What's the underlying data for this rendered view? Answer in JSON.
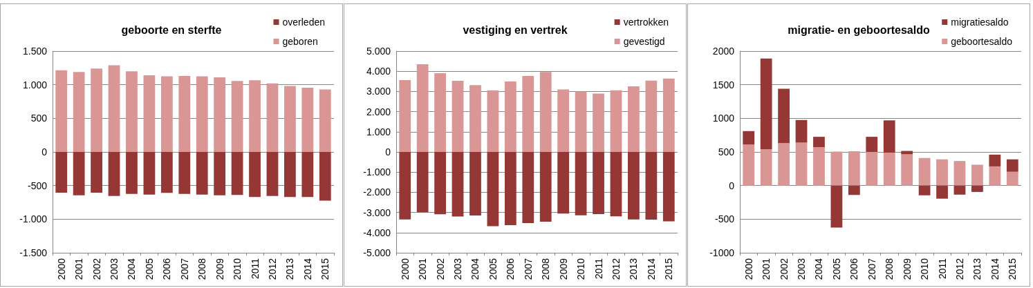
{
  "chart_data": [
    {
      "type": "bar",
      "title": "geboorte en sterfte",
      "categories": [
        "2000",
        "2001",
        "2002",
        "2003",
        "2004",
        "2005",
        "2006",
        "2007",
        "2008",
        "2009",
        "2010",
        "2011",
        "2012",
        "2013",
        "2014",
        "2015"
      ],
      "stacked": true,
      "series": [
        {
          "name": "geboren",
          "color": "#d99694",
          "values": [
            1215,
            1190,
            1240,
            1290,
            1200,
            1140,
            1125,
            1130,
            1125,
            1110,
            1055,
            1065,
            1020,
            980,
            955,
            930
          ]
        },
        {
          "name": "overleden",
          "color": "#953735",
          "values": [
            -605,
            -645,
            -605,
            -655,
            -625,
            -635,
            -610,
            -625,
            -635,
            -645,
            -640,
            -670,
            -655,
            -670,
            -670,
            -725
          ]
        }
      ],
      "ylim": [
        -1500,
        1500
      ],
      "yticks": [
        {
          "value": -1500,
          "label": "-1.500"
        },
        {
          "value": -1000,
          "label": "-1.000"
        },
        -500,
        0,
        500,
        {
          "value": 1000,
          "label": "1.000"
        },
        {
          "value": 1500,
          "label": "1.500"
        }
      ],
      "grid": "y",
      "legend": "top right"
    },
    {
      "type": "bar",
      "title": "vestiging en vertrek",
      "categories": [
        "2000",
        "2001",
        "2002",
        "2003",
        "2004",
        "2005",
        "2006",
        "2007",
        "2008",
        "2009",
        "2010",
        "2011",
        "2012",
        "2013",
        "2014",
        "2015"
      ],
      "stacked": true,
      "series": [
        {
          "name": "gevestigd",
          "color": "#d99694",
          "values": [
            3560,
            4350,
            3900,
            3530,
            3310,
            3060,
            3490,
            3770,
            3960,
            3100,
            3000,
            2890,
            3060,
            3250,
            3540,
            3640
          ]
        },
        {
          "name": "vertrokken",
          "color": "#953735",
          "values": [
            -3350,
            -2990,
            -3090,
            -3200,
            -3150,
            -3680,
            -3630,
            -3530,
            -3460,
            -3060,
            -3140,
            -3080,
            -3190,
            -3350,
            -3360,
            -3440
          ]
        }
      ],
      "ylim": [
        -5000,
        5000
      ],
      "yticks": [
        {
          "value": -5000,
          "label": "-5.000"
        },
        {
          "value": -4000,
          "label": "-4.000"
        },
        {
          "value": -3000,
          "label": "-3.000"
        },
        {
          "value": -2000,
          "label": "-2.000"
        },
        {
          "value": -1000,
          "label": "-1.000"
        },
        0,
        {
          "value": 1000,
          "label": "1.000"
        },
        {
          "value": 2000,
          "label": "2.000"
        },
        {
          "value": 3000,
          "label": "3.000"
        },
        {
          "value": 4000,
          "label": "4.000"
        },
        {
          "value": 5000,
          "label": "5.000"
        }
      ],
      "grid": "y",
      "legend": "top right"
    },
    {
      "type": "bar",
      "title": "migratie- en geboortesaldo",
      "categories": [
        "2000",
        "2001",
        "2002",
        "2003",
        "2004",
        "2005",
        "2006",
        "2007",
        "2008",
        "2009",
        "2010",
        "2011",
        "2012",
        "2013",
        "2014",
        "2015"
      ],
      "stacked": true,
      "series": [
        {
          "name": "geboortesaldo",
          "color": "#d99694",
          "values": [
            610,
            540,
            630,
            640,
            570,
            505,
            510,
            500,
            490,
            465,
            410,
            390,
            365,
            310,
            285,
            205
          ]
        },
        {
          "name": "migratiesaldo",
          "color": "#953735",
          "values": [
            200,
            1350,
            810,
            335,
            155,
            -625,
            -140,
            225,
            480,
            50,
            -145,
            -195,
            -135,
            -95,
            175,
            185
          ]
        }
      ],
      "ylim": [
        -1000,
        2000
      ],
      "yticks": [
        -1000,
        -500,
        0,
        500,
        1000,
        1500,
        2000
      ],
      "grid": "y",
      "legend": "top right"
    }
  ]
}
